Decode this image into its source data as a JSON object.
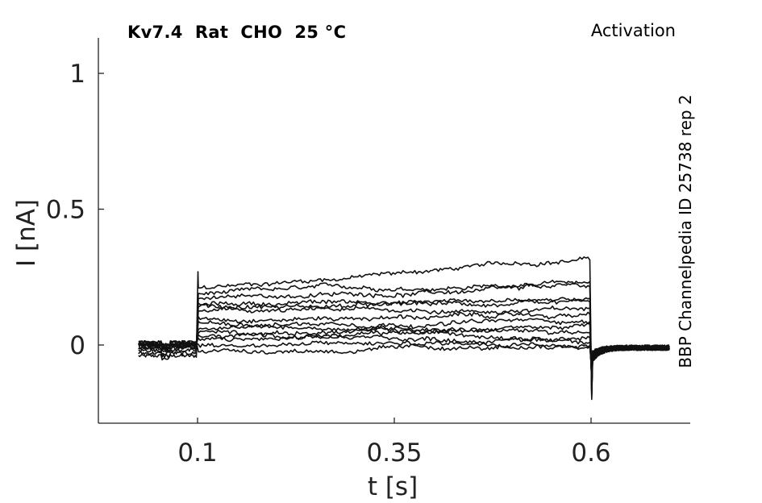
{
  "chart_data": {
    "type": "line",
    "title": "Kv7.4  Rat  CHO  25 °C",
    "protocol": "Activation",
    "side_label": "BBP Channelpedia ID 25738 rep 2",
    "xlabel": "t [s]",
    "ylabel": "I [nA]",
    "xlim": [
      0.0,
      0.75
    ],
    "ylim": [
      -0.29,
      1.13
    ],
    "xticks": [
      0.1,
      0.35,
      0.6
    ],
    "xtick_labels": [
      "0.1",
      "0.35",
      "0.6"
    ],
    "yticks": [
      0,
      0.5,
      1
    ],
    "ytick_labels": [
      "0",
      "0.5",
      "1"
    ],
    "grid": false,
    "line_color": "#111111",
    "series": [
      {
        "pre": -0.04,
        "plateau": [
          0.21,
          0.32
        ]
      },
      {
        "pre": -0.03,
        "plateau": [
          0.19,
          0.23
        ]
      },
      {
        "pre": -0.02,
        "plateau": [
          0.17,
          0.21
        ]
      },
      {
        "pre": -0.01,
        "plateau": [
          0.15,
          0.17
        ]
      },
      {
        "pre": -0.01,
        "plateau": [
          0.14,
          0.15
        ]
      },
      {
        "pre": 0.0,
        "plateau": [
          0.12,
          0.13
        ]
      },
      {
        "pre": 0.0,
        "plateau": [
          0.1,
          0.11
        ]
      },
      {
        "pre": 0.0,
        "plateau": [
          0.08,
          0.09
        ]
      },
      {
        "pre": 0.0,
        "plateau": [
          0.06,
          0.07
        ]
      },
      {
        "pre": 0.0,
        "plateau": [
          0.05,
          0.05
        ]
      },
      {
        "pre": 0.0,
        "plateau": [
          0.03,
          0.04
        ]
      },
      {
        "pre": 0.01,
        "plateau": [
          0.02,
          0.02
        ]
      },
      {
        "pre": 0.01,
        "plateau": [
          0.0,
          0.01
        ]
      },
      {
        "pre": 0.01,
        "plateau": [
          -0.02,
          -0.01
        ]
      }
    ]
  }
}
